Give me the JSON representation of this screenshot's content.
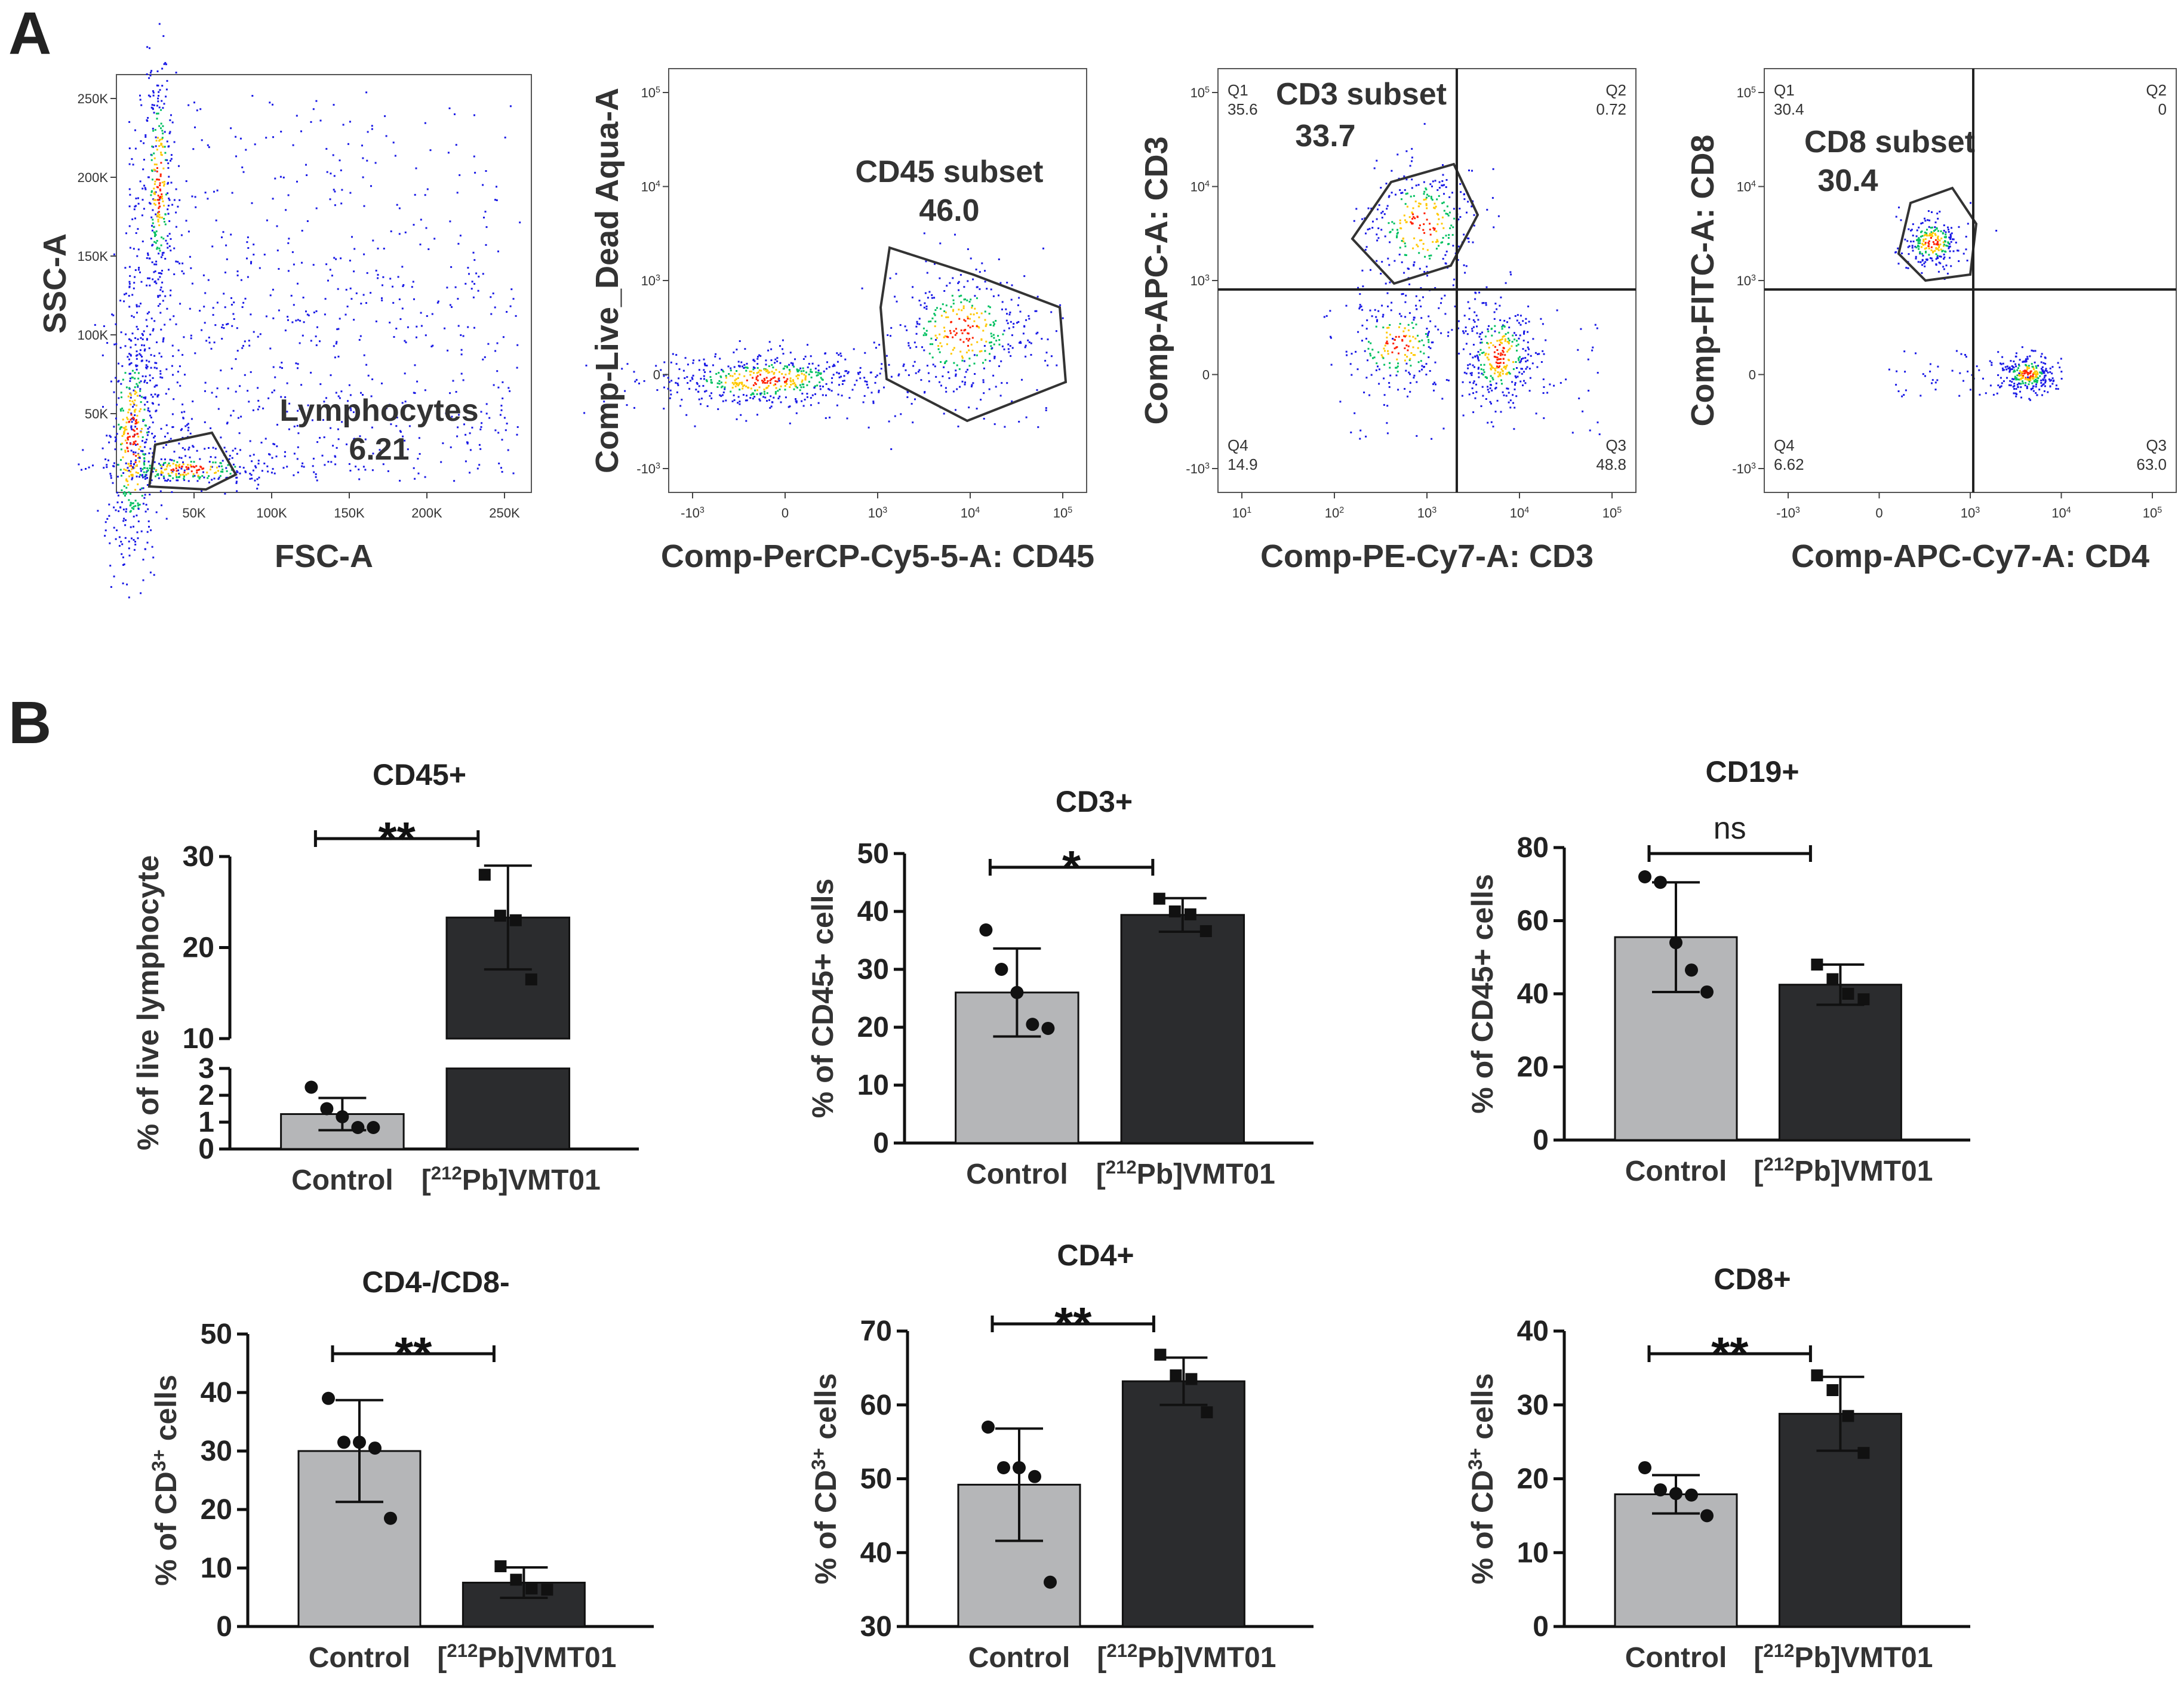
{
  "panels": {
    "a": "A",
    "b": "B"
  },
  "colors": {
    "control": "#b5b6b8",
    "treated": "#2b2c2e",
    "density_low": "#1a1ae6",
    "density_mid": "#00c060",
    "density_high": "#ff2000"
  },
  "chart_data": [
    {
      "type": "scatter",
      "panel": "A",
      "xlabel": "FSC-A",
      "ylabel": "SSC-A",
      "xticks": [
        "50K",
        "100K",
        "150K",
        "200K",
        "250K"
      ],
      "yticks": [
        "50K",
        "100K",
        "150K",
        "200K",
        "250K"
      ],
      "gate": {
        "name": "Lymphocytes",
        "value": "6.21"
      }
    },
    {
      "type": "scatter",
      "panel": "A",
      "xlabel": "Comp-PerCP-Cy5-5-A: CD45",
      "ylabel": "Comp-Live_Dead Aqua-A",
      "xticks": [
        "-10",
        "0",
        "10",
        "10",
        "10"
      ],
      "xtick_exp": [
        "3",
        "",
        "3",
        "4",
        "5"
      ],
      "yticks": [
        "-10",
        "0",
        "10",
        "10",
        "10"
      ],
      "ytick_exp": [
        "3",
        "",
        "3",
        "4",
        "5"
      ],
      "gate": {
        "name": "CD45 subset",
        "value": "46.0"
      }
    },
    {
      "type": "scatter",
      "panel": "A",
      "xlabel": "Comp-PE-Cy7-A: CD3",
      "ylabel": "Comp-APC-A: CD3",
      "xticks": [
        "10",
        "10",
        "10",
        "10",
        "10"
      ],
      "xtick_exp": [
        "1",
        "2",
        "3",
        "4",
        "5"
      ],
      "yticks": [
        "-10",
        "0",
        "10",
        "10",
        "10"
      ],
      "ytick_exp": [
        "3",
        "",
        "3",
        "4",
        "5"
      ],
      "gate": {
        "name": "CD3 subset",
        "value": "33.7"
      },
      "quadrants": [
        {
          "name": "Q1",
          "value": "35.6"
        },
        {
          "name": "Q2",
          "value": "0.72"
        },
        {
          "name": "Q3",
          "value": "48.8"
        },
        {
          "name": "Q4",
          "value": "14.9"
        }
      ]
    },
    {
      "type": "scatter",
      "panel": "A",
      "xlabel": "Comp-APC-Cy7-A: CD4",
      "ylabel": "Comp-FITC-A: CD8",
      "xticks": [
        "-10",
        "0",
        "10",
        "10",
        "10"
      ],
      "xtick_exp": [
        "3",
        "",
        "3",
        "4",
        "5"
      ],
      "yticks": [
        "-10",
        "0",
        "10",
        "10",
        "10"
      ],
      "ytick_exp": [
        "3",
        "",
        "3",
        "4",
        "5"
      ],
      "gate": {
        "name": "CD8 subset",
        "value": "30.4"
      },
      "quadrants": [
        {
          "name": "Q1",
          "value": "30.4"
        },
        {
          "name": "Q2",
          "value": "0"
        },
        {
          "name": "Q3",
          "value": "63.0"
        },
        {
          "name": "Q4",
          "value": "6.62"
        }
      ]
    },
    {
      "type": "bar",
      "panel": "B",
      "title": "CD45+",
      "ylabel": "% of live lymphocyte",
      "categories": [
        "Control",
        "VMT01"
      ],
      "category_prefix": [
        "",
        "["
      ],
      "category_sup": [
        "",
        "212"
      ],
      "category_mid": [
        "",
        "Pb]"
      ],
      "values": [
        1.3,
        23.3
      ],
      "sd": [
        0.6,
        5.7
      ],
      "points": [
        [
          2.3,
          1.5,
          1.2,
          0.8,
          0.8
        ],
        [
          28.0,
          23.5,
          23.0,
          16.5
        ]
      ],
      "ylim": [
        0,
        30
      ],
      "yticks": [
        0,
        1,
        2,
        3,
        10,
        20,
        30
      ],
      "axis_break": [
        3,
        10
      ],
      "significance": "**"
    },
    {
      "type": "bar",
      "panel": "B",
      "title": "CD3+",
      "ylabel": "% of CD45+ cells",
      "categories": [
        "Control",
        "VMT01"
      ],
      "category_prefix": [
        "",
        "["
      ],
      "category_sup": [
        "",
        "212"
      ],
      "category_mid": [
        "",
        "Pb]"
      ],
      "values": [
        26.0,
        39.4
      ],
      "sd": [
        7.6,
        2.9
      ],
      "points": [
        [
          36.8,
          30.0,
          26.0,
          20.5,
          19.8
        ],
        [
          42.2,
          40.0,
          39.5,
          36.6
        ]
      ],
      "ylim": [
        0,
        50
      ],
      "yticks": [
        0,
        10,
        20,
        30,
        40,
        50
      ],
      "significance": "*"
    },
    {
      "type": "bar",
      "panel": "B",
      "title": "CD19+",
      "ylabel": "% of CD45+ cells",
      "categories": [
        "Control",
        "VMT01"
      ],
      "category_prefix": [
        "",
        "["
      ],
      "category_sup": [
        "",
        "212"
      ],
      "category_mid": [
        "",
        "Pb]"
      ],
      "values": [
        55.5,
        42.5
      ],
      "sd": [
        15.0,
        5.5
      ],
      "points": [
        [
          72.0,
          70.5,
          54.0,
          46.5,
          40.5
        ],
        [
          48.0,
          44.0,
          40.0,
          38.5
        ]
      ],
      "ylim": [
        0,
        80
      ],
      "yticks": [
        0,
        20,
        40,
        60,
        80
      ],
      "significance": "ns"
    },
    {
      "type": "bar",
      "panel": "B",
      "title": "CD4-/CD8-",
      "ylabel": "% of CD",
      "ylabel_sup": "3+",
      "ylabel_tail": " cells",
      "categories": [
        "Control",
        "VMT01"
      ],
      "category_prefix": [
        "",
        "["
      ],
      "category_sup": [
        "",
        "212"
      ],
      "category_mid": [
        "",
        "Pb]"
      ],
      "values": [
        30.0,
        7.5
      ],
      "sd": [
        8.7,
        2.6
      ],
      "points": [
        [
          39.0,
          31.5,
          31.5,
          30.5,
          18.5
        ],
        [
          10.3,
          8.0,
          6.5,
          6.3
        ]
      ],
      "ylim": [
        0,
        50
      ],
      "yticks": [
        0,
        10,
        20,
        30,
        40,
        50
      ],
      "significance": "**"
    },
    {
      "type": "bar",
      "panel": "B",
      "title": "CD4+",
      "ylabel": "% of CD",
      "ylabel_sup": "3+",
      "ylabel_tail": " cells",
      "categories": [
        "Control",
        "VMT01"
      ],
      "category_prefix": [
        "",
        "["
      ],
      "category_sup": [
        "",
        "212"
      ],
      "category_mid": [
        "",
        "Pb]"
      ],
      "values": [
        49.2,
        63.2
      ],
      "sd": [
        7.6,
        3.2
      ],
      "points": [
        [
          57.0,
          51.5,
          51.5,
          50.3,
          36.0
        ],
        [
          66.8,
          64.0,
          63.5,
          59.0
        ]
      ],
      "ylim": [
        30,
        70
      ],
      "yticks": [
        30,
        40,
        50,
        60,
        70
      ],
      "significance": "**"
    },
    {
      "type": "bar",
      "panel": "B",
      "title": "CD8+",
      "ylabel": "% of CD",
      "ylabel_sup": "3+",
      "ylabel_tail": " cells",
      "categories": [
        "Control",
        "VMT01"
      ],
      "category_prefix": [
        "",
        "["
      ],
      "category_sup": [
        "",
        "212"
      ],
      "category_mid": [
        "",
        "Pb]"
      ],
      "values": [
        17.9,
        28.8
      ],
      "sd": [
        2.6,
        5.0
      ],
      "points": [
        [
          21.5,
          18.5,
          18.0,
          17.8,
          15.0
        ],
        [
          34.0,
          32.0,
          28.5,
          23.5
        ]
      ],
      "ylim": [
        0,
        40
      ],
      "yticks": [
        0,
        10,
        20,
        30,
        40
      ],
      "significance": "**"
    }
  ]
}
